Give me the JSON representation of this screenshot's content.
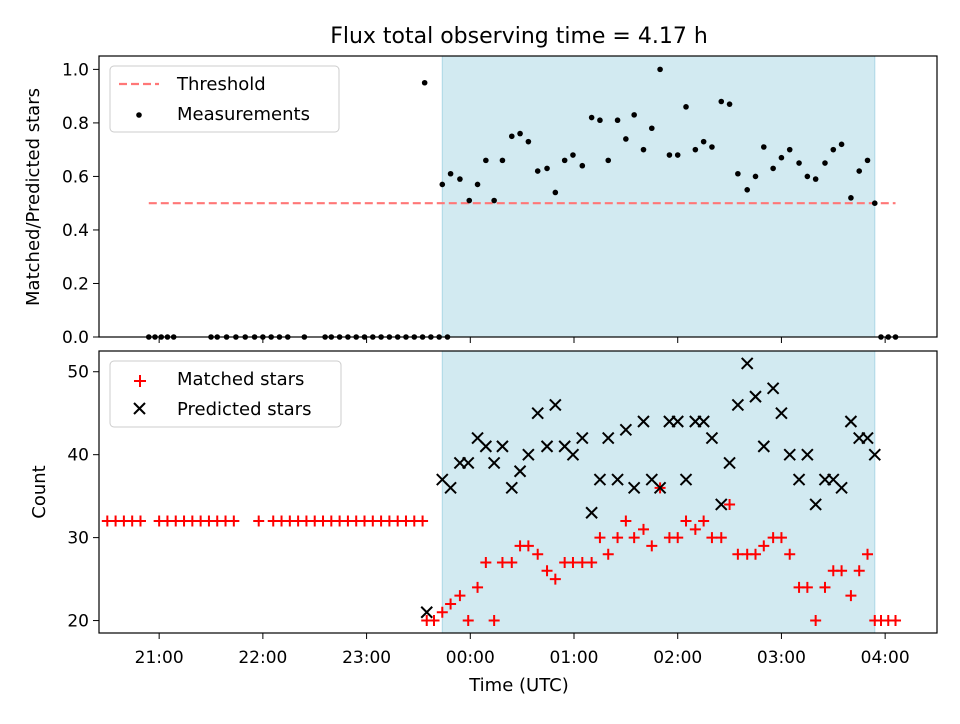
{
  "chart_data": [
    {
      "type": "scatter",
      "title": "Flux total observing time = 4.17 h",
      "xlabel": "",
      "ylabel": "Matched/Predicted stars",
      "xlim": [
        20.42,
        28.5
      ],
      "ylim": [
        0,
        1.05
      ],
      "yticks": [
        "0.0",
        "0.2",
        "0.4",
        "0.6",
        "0.8",
        "1.0"
      ],
      "shaded_span": [
        23.73,
        27.9
      ],
      "shade_color": "#add8e6",
      "legend_position": "upper-left",
      "threshold": {
        "name": "Threshold",
        "value": 0.5,
        "x_range": [
          20.9,
          28.1
        ],
        "color": "#ff7777"
      },
      "series": [
        {
          "name": "Measurements",
          "color": "#000000",
          "x": [
            20.9,
            20.96,
            21.02,
            21.08,
            21.14,
            21.5,
            21.56,
            21.65,
            21.74,
            21.83,
            21.92,
            22.0,
            22.08,
            22.16,
            22.24,
            22.4,
            22.6,
            22.66,
            22.74,
            22.82,
            22.9,
            22.98,
            23.06,
            23.14,
            23.22,
            23.3,
            23.38,
            23.46,
            23.54,
            23.62,
            23.7,
            23.78,
            23.56,
            23.73,
            23.81,
            23.9,
            23.99,
            24.07,
            24.15,
            24.23,
            24.31,
            24.4,
            24.48,
            24.56,
            24.65,
            24.74,
            24.82,
            24.91,
            24.99,
            25.08,
            25.17,
            25.25,
            25.33,
            25.42,
            25.5,
            25.58,
            25.67,
            25.75,
            25.83,
            25.92,
            26.0,
            26.08,
            26.17,
            26.25,
            26.33,
            26.42,
            26.5,
            26.58,
            26.67,
            26.75,
            26.83,
            26.92,
            27.0,
            27.08,
            27.17,
            27.25,
            27.33,
            27.42,
            27.5,
            27.58,
            27.67,
            27.75,
            27.83,
            27.9,
            27.96,
            28.03,
            28.1
          ],
          "y": [
            0,
            0,
            0,
            0,
            0,
            0,
            0,
            0,
            0,
            0,
            0,
            0,
            0,
            0,
            0,
            0,
            0,
            0,
            0,
            0,
            0,
            0,
            0,
            0,
            0,
            0,
            0,
            0,
            0,
            0,
            0,
            0,
            0.95,
            0.57,
            0.61,
            0.59,
            0.51,
            0.57,
            0.66,
            0.51,
            0.66,
            0.75,
            0.76,
            0.73,
            0.62,
            0.63,
            0.54,
            0.66,
            0.68,
            0.64,
            0.82,
            0.81,
            0.66,
            0.81,
            0.74,
            0.83,
            0.7,
            0.78,
            1.0,
            0.68,
            0.68,
            0.86,
            0.7,
            0.73,
            0.71,
            0.88,
            0.87,
            0.61,
            0.55,
            0.6,
            0.71,
            0.63,
            0.67,
            0.7,
            0.65,
            0.6,
            0.59,
            0.65,
            0.7,
            0.72,
            0.52,
            0.62,
            0.66,
            0.5,
            0,
            0,
            0
          ]
        }
      ]
    },
    {
      "type": "scatter",
      "title": "",
      "xlabel": "Time (UTC)",
      "ylabel": "Count",
      "xlim": [
        20.42,
        28.5
      ],
      "ylim": [
        18.5,
        52.5
      ],
      "yticks": [
        "20",
        "30",
        "40",
        "50"
      ],
      "xticks": [
        "21:00",
        "22:00",
        "23:00",
        "00:00",
        "01:00",
        "02:00",
        "03:00",
        "04:00"
      ],
      "xtick_values": [
        21,
        22,
        23,
        24,
        25,
        26,
        27,
        28
      ],
      "shaded_span": [
        23.73,
        27.9
      ],
      "shade_color": "#add8e6",
      "legend_position": "upper-left",
      "series": [
        {
          "name": "Matched stars",
          "marker": "plus",
          "color": "#ff0000",
          "x": [
            20.5,
            20.58,
            20.66,
            20.74,
            20.82,
            21.0,
            21.08,
            21.16,
            21.24,
            21.32,
            21.4,
            21.48,
            21.56,
            21.64,
            21.72,
            21.96,
            22.1,
            22.18,
            22.26,
            22.34,
            22.42,
            22.5,
            22.58,
            22.66,
            22.74,
            22.82,
            22.9,
            22.98,
            23.06,
            23.14,
            23.22,
            23.3,
            23.38,
            23.46,
            23.54,
            23.58,
            23.65,
            23.73,
            23.81,
            23.9,
            23.98,
            24.07,
            24.15,
            24.23,
            24.31,
            24.4,
            24.48,
            24.56,
            24.65,
            24.74,
            24.82,
            24.91,
            24.99,
            25.08,
            25.17,
            25.25,
            25.33,
            25.42,
            25.5,
            25.58,
            25.67,
            25.75,
            25.83,
            25.92,
            26.0,
            26.08,
            26.17,
            26.25,
            26.33,
            26.42,
            26.5,
            26.58,
            26.67,
            26.75,
            26.83,
            26.92,
            27.0,
            27.08,
            27.17,
            27.25,
            27.33,
            27.42,
            27.5,
            27.58,
            27.67,
            27.75,
            27.83,
            27.9,
            27.96,
            28.03,
            28.1
          ],
          "y": [
            32,
            32,
            32,
            32,
            32,
            32,
            32,
            32,
            32,
            32,
            32,
            32,
            32,
            32,
            32,
            32,
            32,
            32,
            32,
            32,
            32,
            32,
            32,
            32,
            32,
            32,
            32,
            32,
            32,
            32,
            32,
            32,
            32,
            32,
            32,
            20,
            20,
            21,
            22,
            23,
            20,
            24,
            27,
            20,
            27,
            27,
            29,
            29,
            28,
            26,
            25,
            27,
            27,
            27,
            27,
            30,
            28,
            30,
            32,
            30,
            31,
            29,
            36,
            30,
            30,
            32,
            31,
            32,
            30,
            30,
            34,
            28,
            28,
            28,
            29,
            30,
            30,
            28,
            24,
            24,
            20,
            24,
            26,
            26,
            23,
            26,
            28,
            20,
            20,
            20,
            20
          ]
        },
        {
          "name": "Predicted stars",
          "marker": "x",
          "color": "#000000",
          "x": [
            23.58,
            23.73,
            23.81,
            23.9,
            23.98,
            24.07,
            24.15,
            24.23,
            24.31,
            24.4,
            24.48,
            24.56,
            24.65,
            24.74,
            24.82,
            24.91,
            24.99,
            25.08,
            25.17,
            25.25,
            25.33,
            25.42,
            25.5,
            25.58,
            25.67,
            25.75,
            25.83,
            25.92,
            26.0,
            26.08,
            26.17,
            26.25,
            26.33,
            26.42,
            26.5,
            26.58,
            26.67,
            26.75,
            26.83,
            26.92,
            27.0,
            27.08,
            27.17,
            27.25,
            27.33,
            27.42,
            27.5,
            27.58,
            27.67,
            27.75,
            27.83,
            27.9
          ],
          "y": [
            21,
            37,
            36,
            39,
            39,
            42,
            41,
            39,
            41,
            36,
            38,
            40,
            45,
            41,
            46,
            41,
            40,
            42,
            33,
            37,
            42,
            37,
            43,
            36,
            44,
            37,
            36,
            44,
            44,
            37,
            44,
            44,
            42,
            34,
            39,
            46,
            51,
            47,
            41,
            48,
            45,
            40,
            37,
            40,
            34,
            37,
            37,
            36,
            44,
            42,
            42,
            40
          ]
        }
      ]
    }
  ]
}
